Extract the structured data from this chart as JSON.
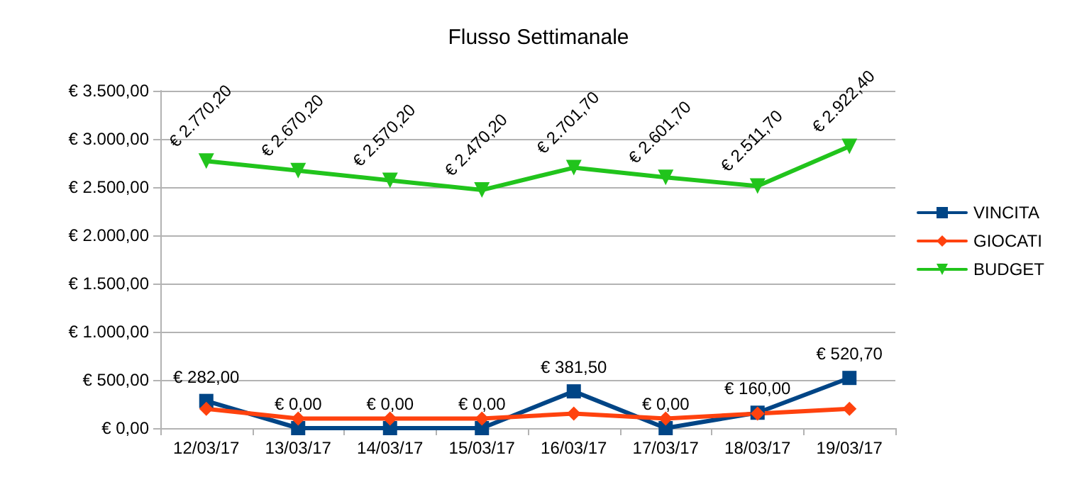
{
  "chart_data": {
    "type": "line",
    "title": "Flusso Settimanale",
    "categories": [
      "12/03/17",
      "13/03/17",
      "14/03/17",
      "15/03/17",
      "16/03/17",
      "17/03/17",
      "18/03/17",
      "19/03/17"
    ],
    "series": [
      {
        "name": "VINCITA",
        "color": "#004586",
        "marker": "square",
        "values": [
          282,
          0,
          0,
          0,
          381.5,
          0,
          160,
          520.7
        ],
        "value_labels": [
          "€ 282,00",
          "€ 0,00",
          "€ 0,00",
          "€ 0,00",
          "€ 381,50",
          "€ 0,00",
          "€ 160,00",
          "€ 520,70"
        ]
      },
      {
        "name": "GIOCATI",
        "color": "#ff420e",
        "marker": "diamond",
        "values": [
          200,
          100,
          100,
          100,
          150,
          100,
          150,
          200
        ]
      },
      {
        "name": "BUDGET",
        "color": "#21c41c",
        "marker": "triangle",
        "values": [
          2770.2,
          2670.2,
          2570.2,
          2470.2,
          2701.7,
          2601.7,
          2511.7,
          2922.4
        ],
        "value_labels": [
          "€ 2.770,20",
          "€ 2.670,20",
          "€ 2.570,20",
          "€ 2.470,20",
          "€ 2.701,70",
          "€ 2.601,70",
          "€ 2.511,70",
          "€ 2.922,40"
        ]
      }
    ],
    "ylim": [
      0,
      3500
    ],
    "yticks": [
      {
        "value": 0,
        "label": "€ 0,00"
      },
      {
        "value": 500,
        "label": "€ 500,00"
      },
      {
        "value": 1000,
        "label": "€ 1.000,00"
      },
      {
        "value": 1500,
        "label": "€ 1.500,00"
      },
      {
        "value": 2000,
        "label": "€ 2.000,00"
      },
      {
        "value": 2500,
        "label": "€ 2.500,00"
      },
      {
        "value": 3000,
        "label": "€ 3.000,00"
      },
      {
        "value": 3500,
        "label": "€ 3.500,00"
      }
    ],
    "grid": "y",
    "legend": "right",
    "line_style": "solid"
  }
}
